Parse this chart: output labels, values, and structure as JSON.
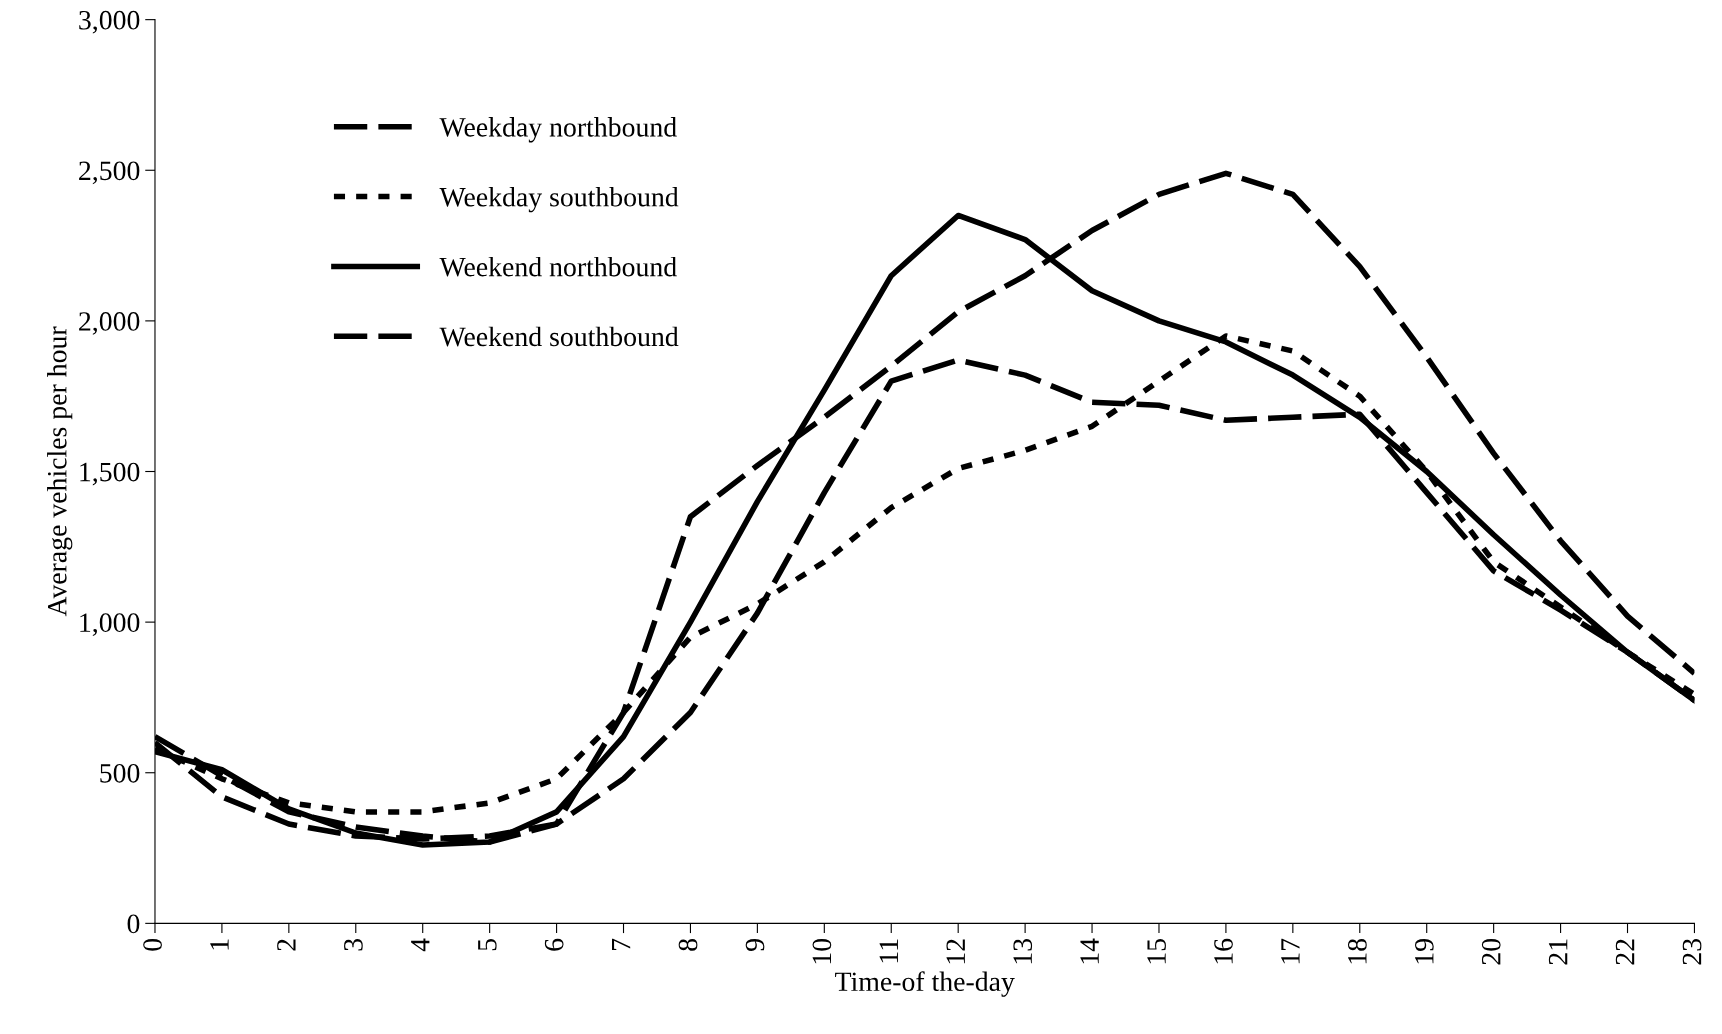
{
  "chart_data": {
    "type": "line",
    "xlabel": "Time-of the-day",
    "ylabel": "Average vehicles per hour",
    "x": [
      0,
      1,
      2,
      3,
      4,
      5,
      6,
      7,
      8,
      9,
      10,
      11,
      12,
      13,
      14,
      15,
      16,
      17,
      18,
      19,
      20,
      21,
      22,
      23
    ],
    "xlim": [
      0,
      23
    ],
    "xticks": [
      0,
      1,
      2,
      3,
      4,
      5,
      6,
      7,
      8,
      9,
      10,
      11,
      12,
      13,
      14,
      15,
      16,
      17,
      18,
      19,
      20,
      21,
      22,
      23
    ],
    "ylim": [
      0,
      3000
    ],
    "yticks": [
      0,
      500,
      {
        "value": 1000,
        "label": "1,000"
      },
      {
        "value": 1500,
        "label": "1,500"
      },
      {
        "value": 2000,
        "label": "2,000"
      },
      {
        "value": 2500,
        "label": "2,500"
      },
      {
        "value": 3000,
        "label": "3,000"
      }
    ],
    "grid": false,
    "legend": "top left",
    "marker": "none",
    "series": [
      {
        "name": "Weekday northbound",
        "color": "#000000",
        "line_style": "dashed",
        "values": [
          600,
          420,
          330,
          290,
          280,
          290,
          330,
          700,
          1350,
          1520,
          1680,
          1850,
          2030,
          2150,
          2300,
          2420,
          2490,
          2420,
          2180,
          1880,
          1560,
          1270,
          1020,
          830
        ]
      },
      {
        "name": "Weekday southbound",
        "color": "#000000",
        "line_style": "dotted",
        "values": [
          580,
          480,
          400,
          370,
          370,
          400,
          480,
          700,
          950,
          1060,
          1200,
          1380,
          1510,
          1570,
          1650,
          1800,
          1950,
          1900,
          1750,
          1500,
          1200,
          1050,
          900,
          760
        ]
      },
      {
        "name": "Weekend northbound",
        "color": "#000000",
        "line_style": "solid",
        "values": [
          570,
          510,
          380,
          300,
          260,
          270,
          370,
          620,
          1000,
          1400,
          1770,
          2150,
          2350,
          2270,
          2100,
          2000,
          1930,
          1820,
          1680,
          1500,
          1290,
          1090,
          900,
          740
        ]
      },
      {
        "name": "Weekend southbound",
        "color": "#000000",
        "line_style": "dashed",
        "values": [
          620,
          490,
          370,
          320,
          290,
          270,
          330,
          480,
          700,
          1030,
          1430,
          1800,
          1870,
          1820,
          1730,
          1720,
          1670,
          1680,
          1690,
          1430,
          1170,
          1040,
          900,
          740
        ]
      }
    ]
  }
}
